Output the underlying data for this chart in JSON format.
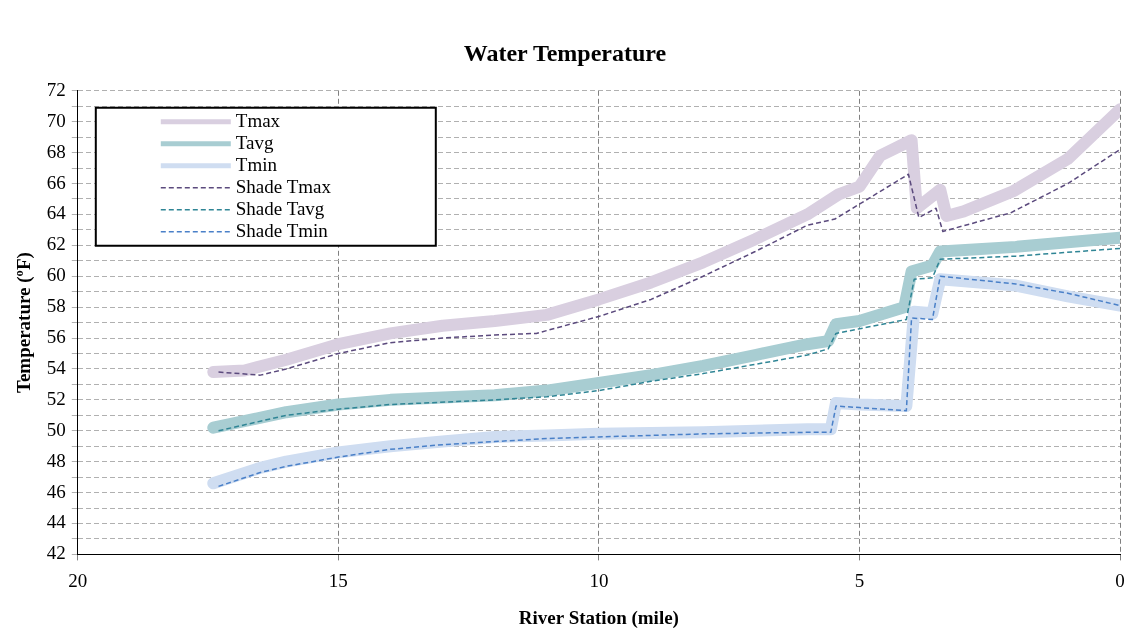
{
  "chart_data": {
    "type": "line",
    "title": "Water Temperature",
    "xlabel": "River Station (mile)",
    "ylabel": "Temperature (ºF)",
    "xlim": [
      20,
      0
    ],
    "xticks": [
      20,
      15,
      10,
      5,
      0
    ],
    "ylim": [
      42,
      72
    ],
    "yticks": [
      42,
      {
        "value": 43,
        "label": null
      },
      44,
      {
        "value": 45,
        "label": null
      },
      46,
      {
        "value": 47,
        "label": null
      },
      48,
      {
        "value": 49,
        "label": null
      },
      50,
      {
        "value": 51,
        "label": null
      },
      52,
      {
        "value": 53,
        "label": null
      },
      54,
      {
        "value": 55,
        "label": null
      },
      56,
      {
        "value": 57,
        "label": null
      },
      58,
      {
        "value": 59,
        "label": null
      },
      60,
      {
        "value": 61,
        "label": null
      },
      62,
      {
        "value": 63,
        "label": null
      },
      64,
      {
        "value": 65,
        "label": null
      },
      66,
      {
        "value": 67,
        "label": null
      },
      68,
      {
        "value": 69,
        "label": null
      },
      70,
      {
        "value": 71,
        "label": null
      },
      72
    ],
    "grid": true,
    "legend": "top left",
    "marker": "none",
    "series": [
      {
        "name": "Tmax",
        "color": "#d9cfe0",
        "line_style": "solid",
        "x": [
          17.4,
          16.8,
          16,
          15,
          14,
          13,
          12,
          11,
          10,
          9,
          8,
          7,
          6,
          5.4,
          5,
          4.6,
          4.0,
          3.9,
          3.45,
          3.33,
          3,
          2.05,
          1,
          0
        ],
        "values": [
          53.8,
          53.9,
          54.6,
          55.6,
          56.3,
          56.8,
          57.1,
          57.5,
          58.5,
          59.6,
          60.9,
          62.4,
          64,
          65.3,
          65.8,
          67.8,
          68.8,
          64.4,
          65.6,
          63.9,
          64.2,
          65.5,
          67.6,
          70.8
        ]
      },
      {
        "name": "Tavg",
        "color": "#a8cdd2",
        "line_style": "solid",
        "x": [
          17.4,
          16,
          15,
          14,
          12,
          11,
          10,
          9,
          8,
          7,
          6,
          5.6,
          5.45,
          5,
          4.14,
          4.0,
          3.6,
          3.45,
          2,
          0
        ],
        "values": [
          50.2,
          51.2,
          51.7,
          52,
          52.3,
          52.6,
          53.1,
          53.6,
          54.2,
          54.9,
          55.6,
          55.8,
          56.9,
          57.1,
          58.0,
          60.3,
          60.7,
          61.6,
          61.9,
          62.5
        ]
      },
      {
        "name": "Tmin",
        "color": "#cfddf1",
        "line_style": "solid",
        "x": [
          17.4,
          16.5,
          16,
          15,
          14,
          13,
          12,
          11,
          10,
          8,
          7,
          6,
          5.55,
          5.45,
          5,
          4.1,
          3.95,
          3.6,
          3.45,
          2,
          1,
          0
        ],
        "values": [
          46.6,
          47.6,
          48,
          48.6,
          49,
          49.3,
          49.6,
          49.7,
          49.8,
          49.9,
          50.0,
          50.1,
          50.1,
          51.8,
          51.7,
          51.6,
          57.7,
          57.6,
          59.8,
          59.4,
          58.7,
          58.1
        ]
      },
      {
        "name": "Shade Tmax",
        "color": "#5b4a7d",
        "line_style": "dashed",
        "x": [
          17.3,
          16.5,
          16,
          15,
          14,
          13,
          12,
          11.2,
          10,
          9,
          8,
          7,
          6,
          5.47,
          4.06,
          3.86,
          3.53,
          3.4,
          2.1,
          1,
          0
        ],
        "values": [
          53.8,
          53.6,
          54,
          55,
          55.7,
          56,
          56.2,
          56.3,
          57.4,
          58.5,
          60,
          61.6,
          63.3,
          63.7,
          66.6,
          63.8,
          64.4,
          62.9,
          64.1,
          66,
          68.2
        ]
      },
      {
        "name": "Shade Tavg",
        "color": "#2f8595",
        "line_style": "dashed",
        "x": [
          17.3,
          16,
          15,
          14,
          12,
          11,
          10,
          9,
          8,
          7,
          6,
          5.6,
          5.45,
          5,
          4.1,
          3.95,
          3.6,
          3.45,
          2,
          0
        ],
        "values": [
          50.0,
          51,
          51.4,
          51.7,
          52,
          52.2,
          52.6,
          53.2,
          53.7,
          54.3,
          54.9,
          55.3,
          56.3,
          56.6,
          57.2,
          59.8,
          59.9,
          61.1,
          61.3,
          61.8
        ]
      },
      {
        "name": "Shade Tmin",
        "color": "#4a80c8",
        "line_style": "dashed",
        "x": [
          17.3,
          16.5,
          16,
          15,
          14,
          13,
          12,
          11,
          10,
          9,
          8,
          6,
          5.55,
          5.45,
          5,
          4.1,
          4.0,
          3.6,
          3.45,
          2,
          1,
          0
        ],
        "values": [
          46.4,
          47.3,
          47.7,
          48.3,
          48.8,
          49.1,
          49.3,
          49.5,
          49.6,
          49.7,
          49.8,
          49.9,
          49.9,
          51.6,
          51.5,
          51.3,
          57.3,
          57.2,
          60.0,
          59.5,
          58.9,
          58.1
        ]
      }
    ]
  }
}
